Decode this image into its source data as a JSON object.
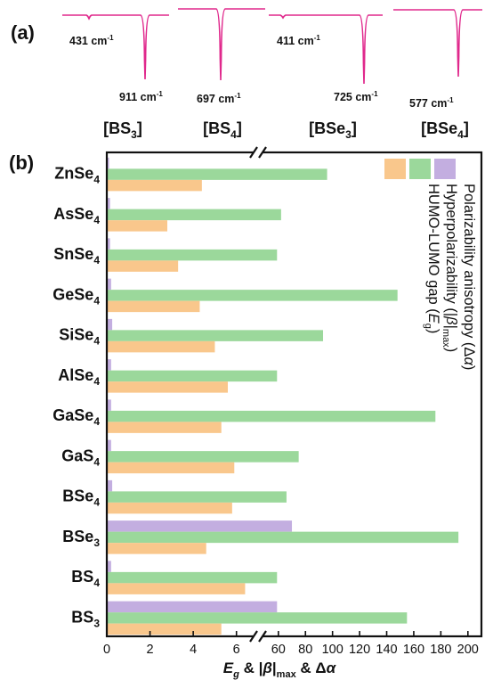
{
  "colors": {
    "spectrum": "#e0288c",
    "purple": "#c3aee0",
    "green": "#9bd89b",
    "orange": "#f9c78c",
    "frame": "#111111"
  },
  "panel_a": {
    "label": "(a)",
    "spectra": [
      {
        "name_base": "[BS",
        "name_sub": "3",
        "name_end": "]",
        "peaks": [
          {
            "label": "431 cm",
            "sup": "-1"
          },
          {
            "label": "911 cm",
            "sup": "-1"
          }
        ]
      },
      {
        "name_base": "[BS",
        "name_sub": "4",
        "name_end": "]",
        "peaks": [
          {
            "label": "697 cm",
            "sup": "-1"
          }
        ]
      },
      {
        "name_base": "[BSe",
        "name_sub": "3",
        "name_end": "]",
        "peaks": [
          {
            "label": "411 cm",
            "sup": "-1"
          },
          {
            "label": "725 cm",
            "sup": "-1"
          }
        ]
      },
      {
        "name_base": "[BSe",
        "name_sub": "4",
        "name_end": "]",
        "peaks": [
          {
            "label": "577 cm",
            "sup": "-1"
          }
        ]
      }
    ]
  },
  "panel_b": {
    "label": "(b)"
  },
  "chart_data": {
    "type": "bar",
    "orientation": "horizontal",
    "broken_x_axis": true,
    "categories": [
      "ZnSe4",
      "AsSe4",
      "SnSe4",
      "GeSe4",
      "SiSe4",
      "AlSe4",
      "GaSe4",
      "GaS4",
      "BSe4",
      "BSe3",
      "BS4",
      "BS3"
    ],
    "category_labels": [
      {
        "base": "ZnSe",
        "sub": "4"
      },
      {
        "base": "AsSe",
        "sub": "4"
      },
      {
        "base": "SnSe",
        "sub": "4"
      },
      {
        "base": "GeSe",
        "sub": "4"
      },
      {
        "base": "SiSe",
        "sub": "4"
      },
      {
        "base": "AlSe",
        "sub": "4"
      },
      {
        "base": "GaSe",
        "sub": "4"
      },
      {
        "base": "GaS",
        "sub": "4"
      },
      {
        "base": "BSe",
        "sub": "4"
      },
      {
        "base": "BSe",
        "sub": "3"
      },
      {
        "base": "BS",
        "sub": "4"
      },
      {
        "base": "BS",
        "sub": "3"
      }
    ],
    "series": [
      {
        "name": "Polarizability anisotropy (Δα)",
        "color": "#c3aee0",
        "values": [
          0.05,
          0.15,
          0.15,
          0.2,
          0.25,
          0.2,
          0.2,
          0.2,
          0.25,
          70,
          0.2,
          59
        ]
      },
      {
        "name": "Hyperpolarizability (|β|max)",
        "color": "#9bd89b",
        "values": [
          96,
          62,
          59,
          148,
          93,
          59,
          176,
          75,
          66,
          193,
          59,
          155
        ]
      },
      {
        "name": "HUMO-LUMO gap (Eg)",
        "color": "#f9c78c",
        "values": [
          4.4,
          2.8,
          3.3,
          4.3,
          5.0,
          5.6,
          5.3,
          5.9,
          5.8,
          4.6,
          6.4,
          5.3
        ]
      }
    ],
    "x_segments": [
      {
        "range": [
          0,
          7
        ],
        "ticks": [
          0,
          2,
          4,
          6
        ]
      },
      {
        "range": [
          45,
          210
        ],
        "ticks": [
          60,
          80,
          100,
          120,
          140,
          160,
          180,
          200
        ]
      }
    ],
    "xlabel": {
      "base": "E",
      "sub_g": "g",
      "mid": " & |",
      "beta": "β",
      "abs": "|",
      "sub_max": "max",
      "end": " & Δ",
      "alpha": "α"
    },
    "legend_texts": [
      {
        "text": "Polarizability anisotropy (Δα)"
      },
      {
        "base": "Hyperpolarizability (|β|",
        "sub": "max",
        "end": ")"
      },
      {
        "base": "HUMO-LUMO gap (E",
        "sub": "g",
        "end": ")"
      }
    ],
    "legend_placement": "top-right",
    "grid": false
  }
}
